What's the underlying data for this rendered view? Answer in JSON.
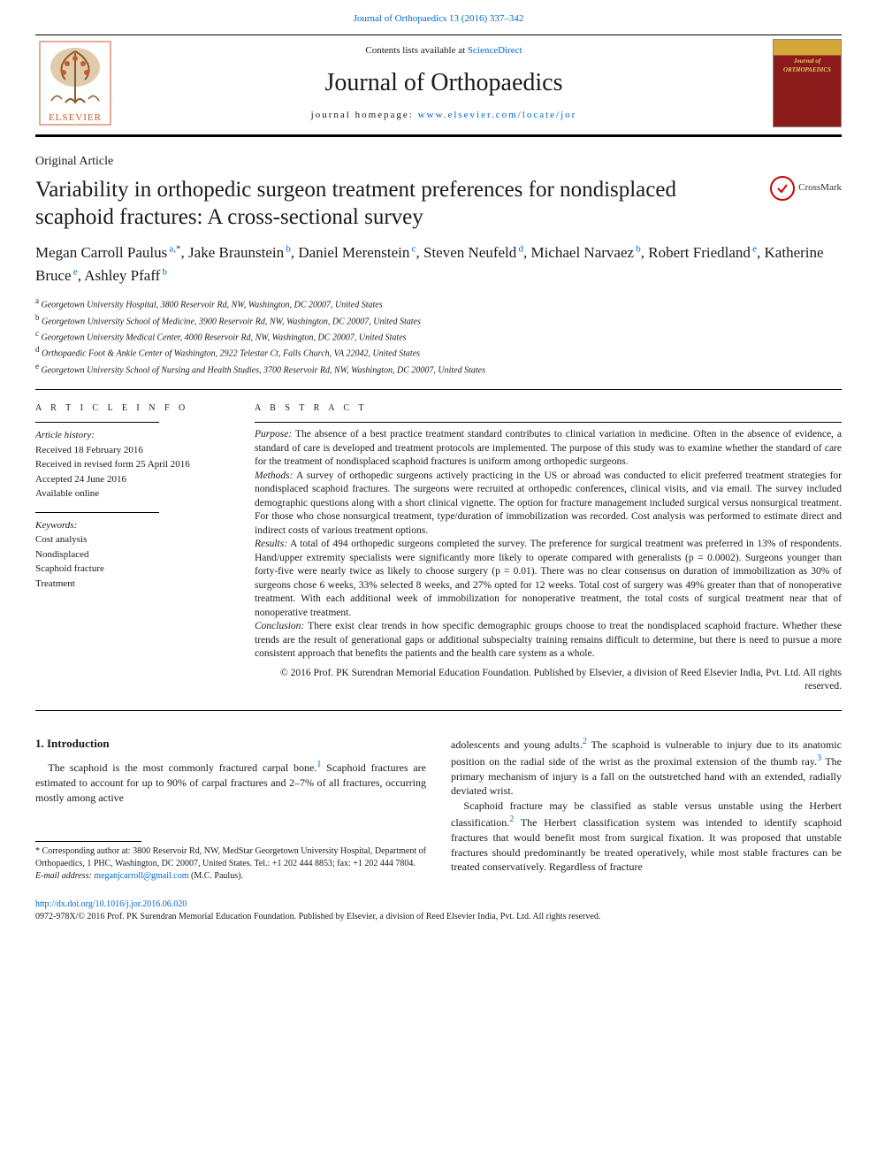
{
  "top_citation": "Journal of Orthopaedics 13 (2016) 337–342",
  "header": {
    "contents_prefix": "Contents lists available at ",
    "contents_link": "ScienceDirect",
    "journal_name": "Journal of Orthopaedics",
    "homepage_prefix": "journal homepage: ",
    "homepage_link": "www.elsevier.com/locate/jor",
    "cover_label": "Journal of",
    "cover_title": "ORTHOPAEDICS"
  },
  "article_type": "Original Article",
  "title": "Variability in orthopedic surgeon treatment preferences for nondisplaced scaphoid fractures: A cross-sectional survey",
  "crossmark_label": "CrossMark",
  "authors": [
    {
      "name": "Megan Carroll Paulus",
      "aff": "a",
      "corr": true
    },
    {
      "name": "Jake Braunstein",
      "aff": "b"
    },
    {
      "name": "Daniel Merenstein",
      "aff": "c"
    },
    {
      "name": "Steven Neufeld",
      "aff": "d"
    },
    {
      "name": "Michael Narvaez",
      "aff": "b"
    },
    {
      "name": "Robert Friedland",
      "aff": "e"
    },
    {
      "name": "Katherine Bruce",
      "aff": "e"
    },
    {
      "name": "Ashley Pfaff",
      "aff": "b"
    }
  ],
  "affiliations": [
    {
      "key": "a",
      "text": "Georgetown University Hospital, 3800 Reservoir Rd, NW, Washington, DC 20007, United States"
    },
    {
      "key": "b",
      "text": "Georgetown University School of Medicine, 3900 Reservoir Rd, NW, Washington, DC 20007, United States"
    },
    {
      "key": "c",
      "text": "Georgetown University Medical Center, 4000 Reservoir Rd, NW, Washington, DC 20007, United States"
    },
    {
      "key": "d",
      "text": "Orthopaedic Foot & Ankle Center of Washington, 2922 Telestar Ct, Falls Church, VA 22042, United States"
    },
    {
      "key": "e",
      "text": "Georgetown University School of Nursing and Health Studies, 3700 Reservoir Rd, NW, Washington, DC 20007, United States"
    }
  ],
  "info": {
    "section_label": "A R T I C L E   I N F O",
    "history_label": "Article history:",
    "history": "Received 18 February 2016\nReceived in revised form 25 April 2016\nAccepted 24 June 2016\nAvailable online",
    "keywords_label": "Keywords:",
    "keywords": "Cost analysis\nNondisplaced\nScaphoid fracture\nTreatment"
  },
  "abstract": {
    "section_label": "A B S T R A C T",
    "segments": [
      {
        "label": "Purpose:",
        "text": " The absence of a best practice treatment standard contributes to clinical variation in medicine. Often in the absence of evidence, a standard of care is developed and treatment protocols are implemented. The purpose of this study was to examine whether the standard of care for the treatment of nondisplaced scaphoid fractures is uniform among orthopedic surgeons."
      },
      {
        "label": "Methods:",
        "text": " A survey of orthopedic surgeons actively practicing in the US or abroad was conducted to elicit preferred treatment strategies for nondisplaced scaphoid fractures. The surgeons were recruited at orthopedic conferences, clinical visits, and via email. The survey included demographic questions along with a short clinical vignette. The option for fracture management included surgical versus nonsurgical treatment. For those who chose nonsurgical treatment, type/duration of immobilization was recorded. Cost analysis was performed to estimate direct and indirect costs of various treatment options."
      },
      {
        "label": "Results:",
        "text": " A total of 494 orthopedic surgeons completed the survey. The preference for surgical treatment was preferred in 13% of respondents. Hand/upper extremity specialists were significantly more likely to operate compared with generalists (p = 0.0002). Surgeons younger than forty-five were nearly twice as likely to choose surgery (p = 0.01). There was no clear consensus on duration of immobilization as 30% of surgeons chose 6 weeks, 33% selected 8 weeks, and 27% opted for 12 weeks. Total cost of surgery was 49% greater than that of nonoperative treatment. With each additional week of immobilization for nonoperative treatment, the total costs of surgical treatment near that of nonoperative treatment."
      },
      {
        "label": "Conclusion:",
        "text": " There exist clear trends in how specific demographic groups choose to treat the nondisplaced scaphoid fracture. Whether these trends are the result of generational gaps or additional subspecialty training remains difficult to determine, but there is need to pursue a more consistent approach that benefits the patients and the health care system as a whole."
      }
    ],
    "copyright": "© 2016 Prof. PK Surendran Memorial Education Foundation. Published by Elsevier, a division of Reed Elsevier India, Pvt. Ltd. All rights reserved."
  },
  "body": {
    "heading": "1. Introduction",
    "col1_p1_a": "The scaphoid is the most commonly fractured carpal bone.",
    "col1_p1_b": " Scaphoid fractures are estimated to account for up to 90% of carpal fractures and 2–7% of all fractures, occurring mostly among active",
    "col2_p1_a": "adolescents and young adults.",
    "col2_p1_b": " The scaphoid is vulnerable to injury due to its anatomic position on the radial side of the wrist as the proximal extension of the thumb ray.",
    "col2_p1_c": " The primary mechanism of injury is a fall on the outstretched hand with an extended, radially deviated wrist.",
    "col2_p2_a": "Scaphoid fracture may be classified as stable versus unstable using the Herbert classification.",
    "col2_p2_b": " The Herbert classification system was intended to identify scaphoid fractures that would benefit most from surgical fixation. It was proposed that unstable fractures should predominantly be treated operatively, while most stable fractures can be treated conservatively. Regardless of fracture",
    "ref1": "1",
    "ref2": "2",
    "ref3": "3",
    "ref2b": "2"
  },
  "footnote": {
    "corr": "* Corresponding author at: 3800 Reservoir Rd, NW, MedStar Georgetown University Hospital, Department of Orthopaedics, 1 PHC, Washington, DC 20007, United States. Tel.: +1 202 444 8853; fax: +1 202 444 7804.",
    "email_label": "E-mail address: ",
    "email": "meganjcarroll@gmail.com",
    "email_suffix": " (M.C. Paulus)."
  },
  "doi": {
    "link": "http://dx.doi.org/10.1016/j.jor.2016.06.020",
    "issn_line": "0972-978X/© 2016 Prof. PK Surendran Memorial Education Foundation. Published by Elsevier, a division of Reed Elsevier India, Pvt. Ltd. All rights reserved."
  },
  "colors": {
    "link": "#0066cc",
    "rule": "#000000",
    "cover_top": "#d4a838",
    "cover_body": "#8b1a1a",
    "cover_text": "#e8c566",
    "crossmark_ring": "#c00000"
  },
  "typography": {
    "body_pt": 13,
    "title_pt": 25,
    "journal_pt": 28,
    "authors_pt": 17,
    "small_pt": 11,
    "tiny_pt": 10
  }
}
